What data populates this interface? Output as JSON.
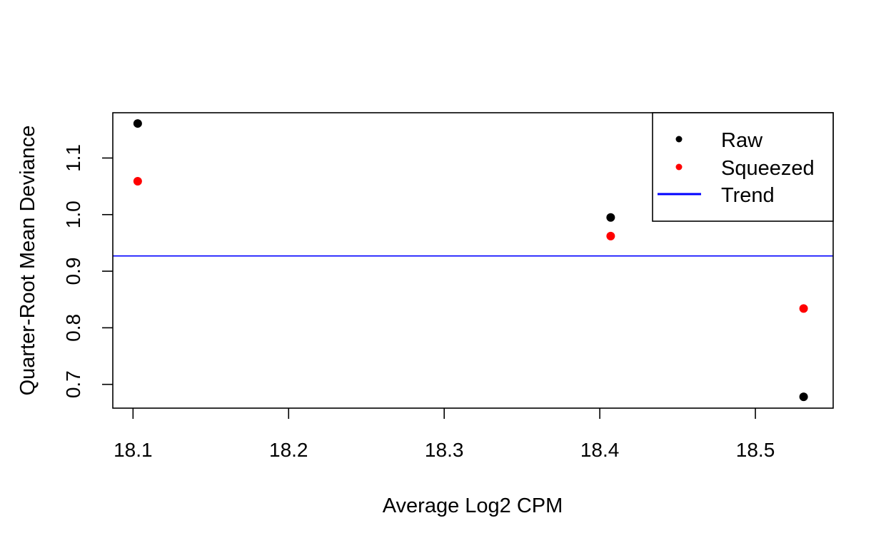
{
  "chart_data": {
    "type": "scatter",
    "title": "",
    "xlabel": "Average Log2 CPM",
    "ylabel": "Quarter-Root Mean Deviance",
    "xlim": [
      18.087,
      18.55
    ],
    "ylim": [
      0.658,
      1.18
    ],
    "xticks": [
      18.1,
      18.2,
      18.3,
      18.4,
      18.5
    ],
    "xtick_labels": [
      "18.1",
      "18.2",
      "18.3",
      "18.4",
      "18.5"
    ],
    "yticks": [
      0.7,
      0.8,
      0.9,
      1.0,
      1.1
    ],
    "ytick_labels": [
      "0.7",
      "0.8",
      "0.9",
      "1.0",
      "1.1"
    ],
    "grid": false,
    "legend_position": "top-right",
    "series": [
      {
        "name": "Raw",
        "color": "#000000",
        "marker": "filled-circle",
        "x": [
          18.103,
          18.407,
          18.531
        ],
        "y": [
          1.161,
          0.995,
          0.678
        ]
      },
      {
        "name": "Squeezed",
        "color": "#ff0000",
        "marker": "filled-circle",
        "x": [
          18.103,
          18.407,
          18.531
        ],
        "y": [
          1.059,
          0.962,
          0.834
        ]
      }
    ],
    "trend": {
      "name": "Trend",
      "color": "#0000ff",
      "type": "horizontal-line",
      "y": 0.927
    }
  }
}
